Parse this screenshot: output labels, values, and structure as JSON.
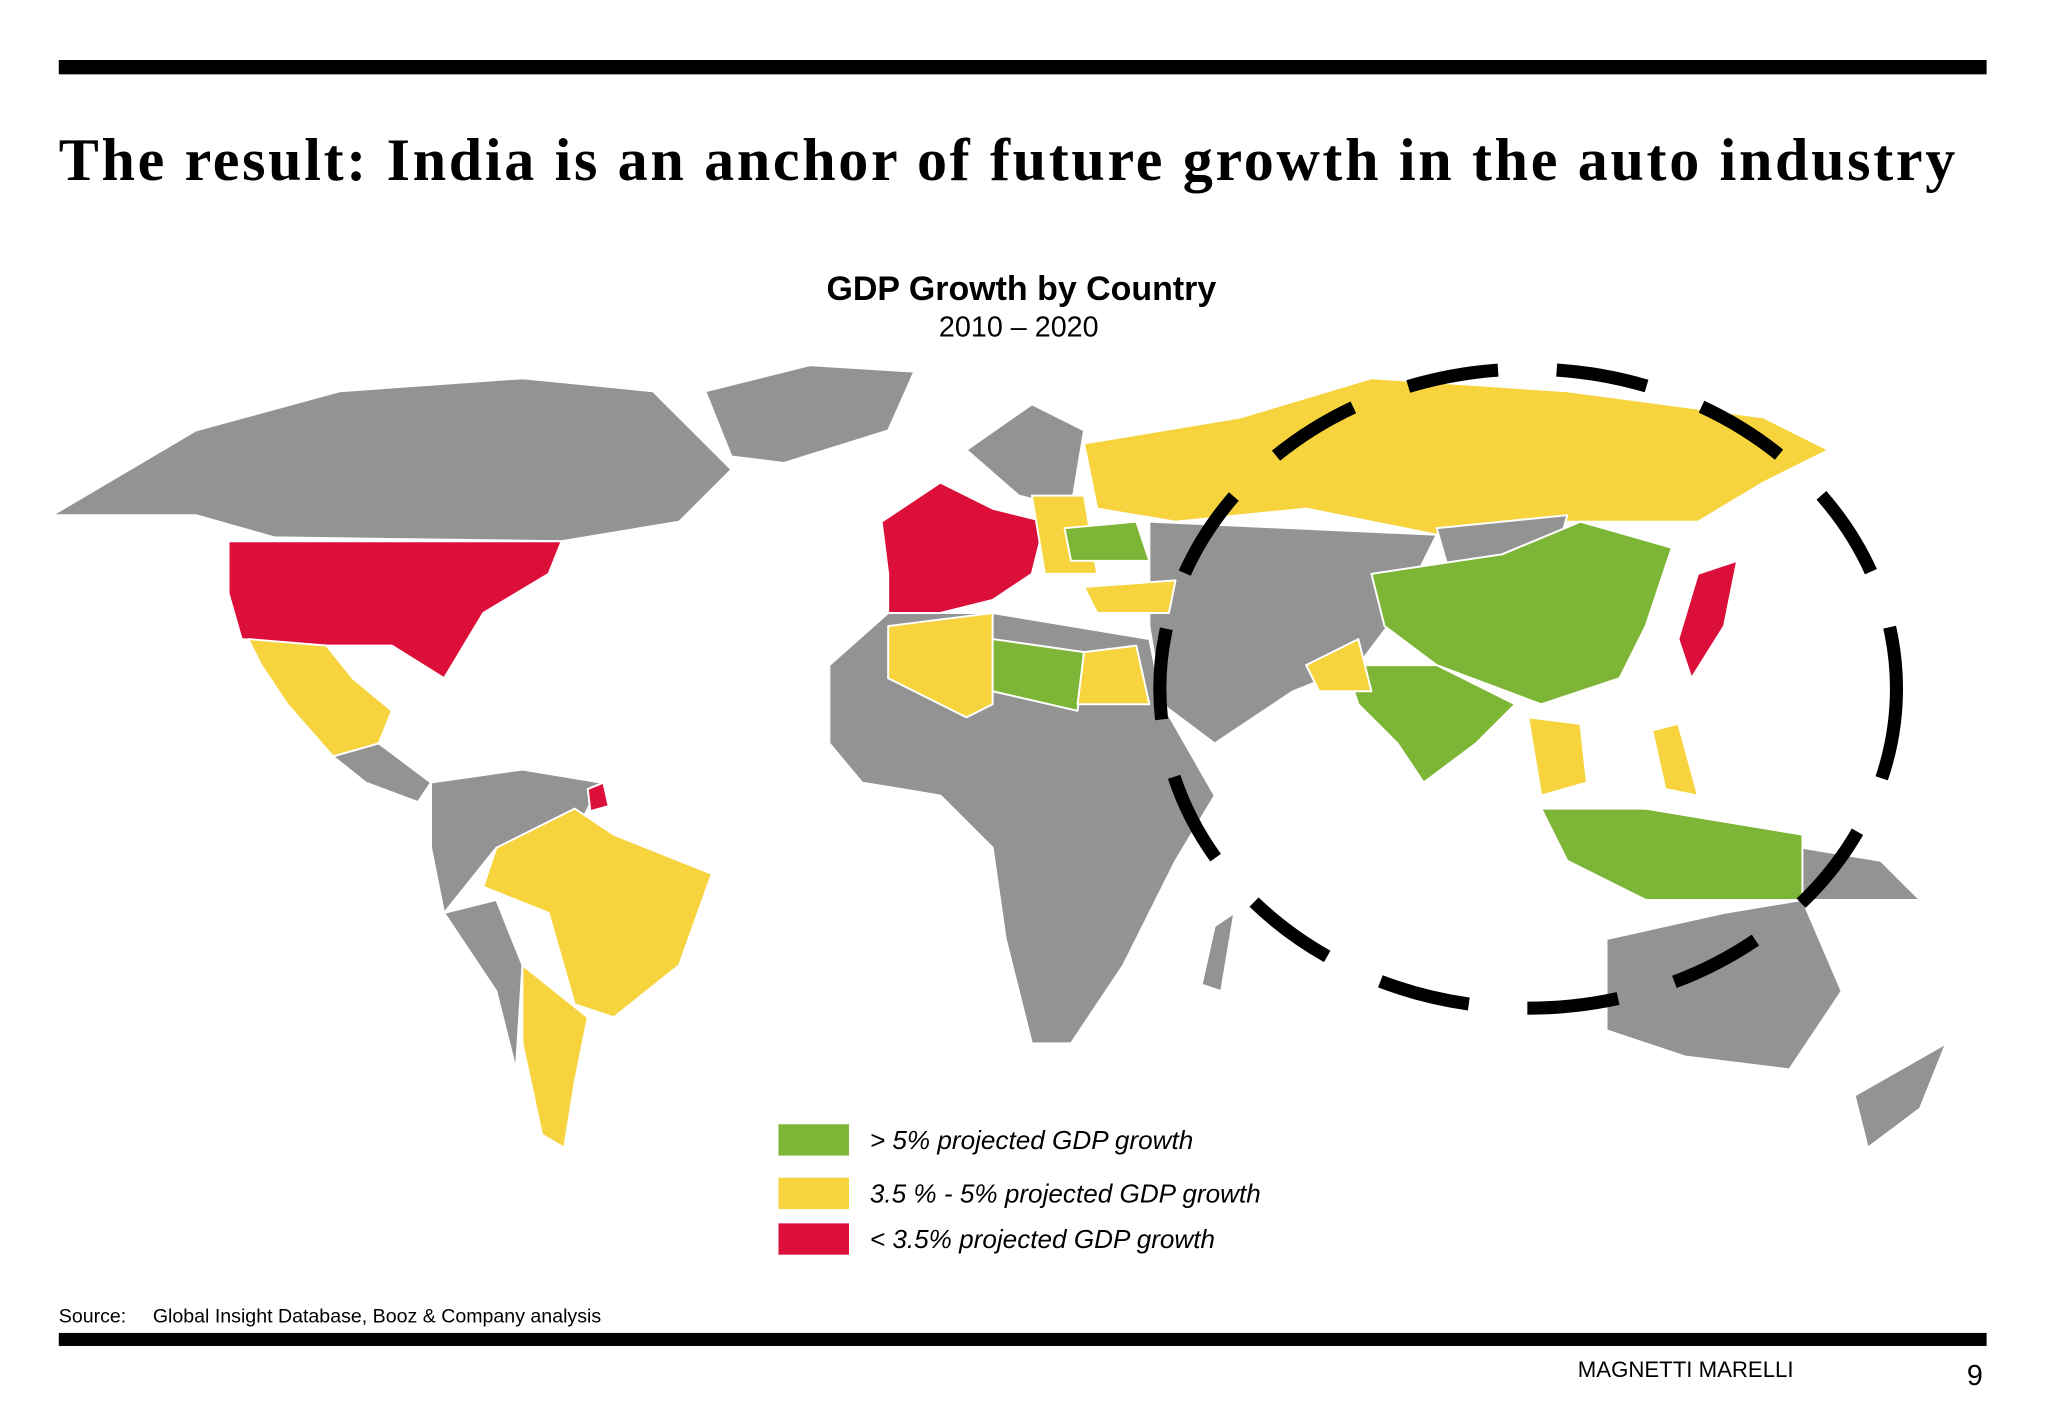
{
  "slide": {
    "title": "The result: India is an anchor of future growth  in the auto industry",
    "map_title": "GDP Growth by Country",
    "map_subtitle": "2010 – 2020",
    "legend": [
      {
        "label": "> 5% projected GDP growth",
        "color": "#7db636"
      },
      {
        "label": "3.5 % - 5% projected GDP growth",
        "color": "#f7d43e"
      },
      {
        "label": "< 3.5% projected GDP growth",
        "color": "#dc0f3a"
      }
    ],
    "source_label": "Source:",
    "source_text": "Global Insight Database, Booz & Company analysis",
    "footer_brand": "MAGNETTI MARELLI",
    "page_number": "9"
  }
}
